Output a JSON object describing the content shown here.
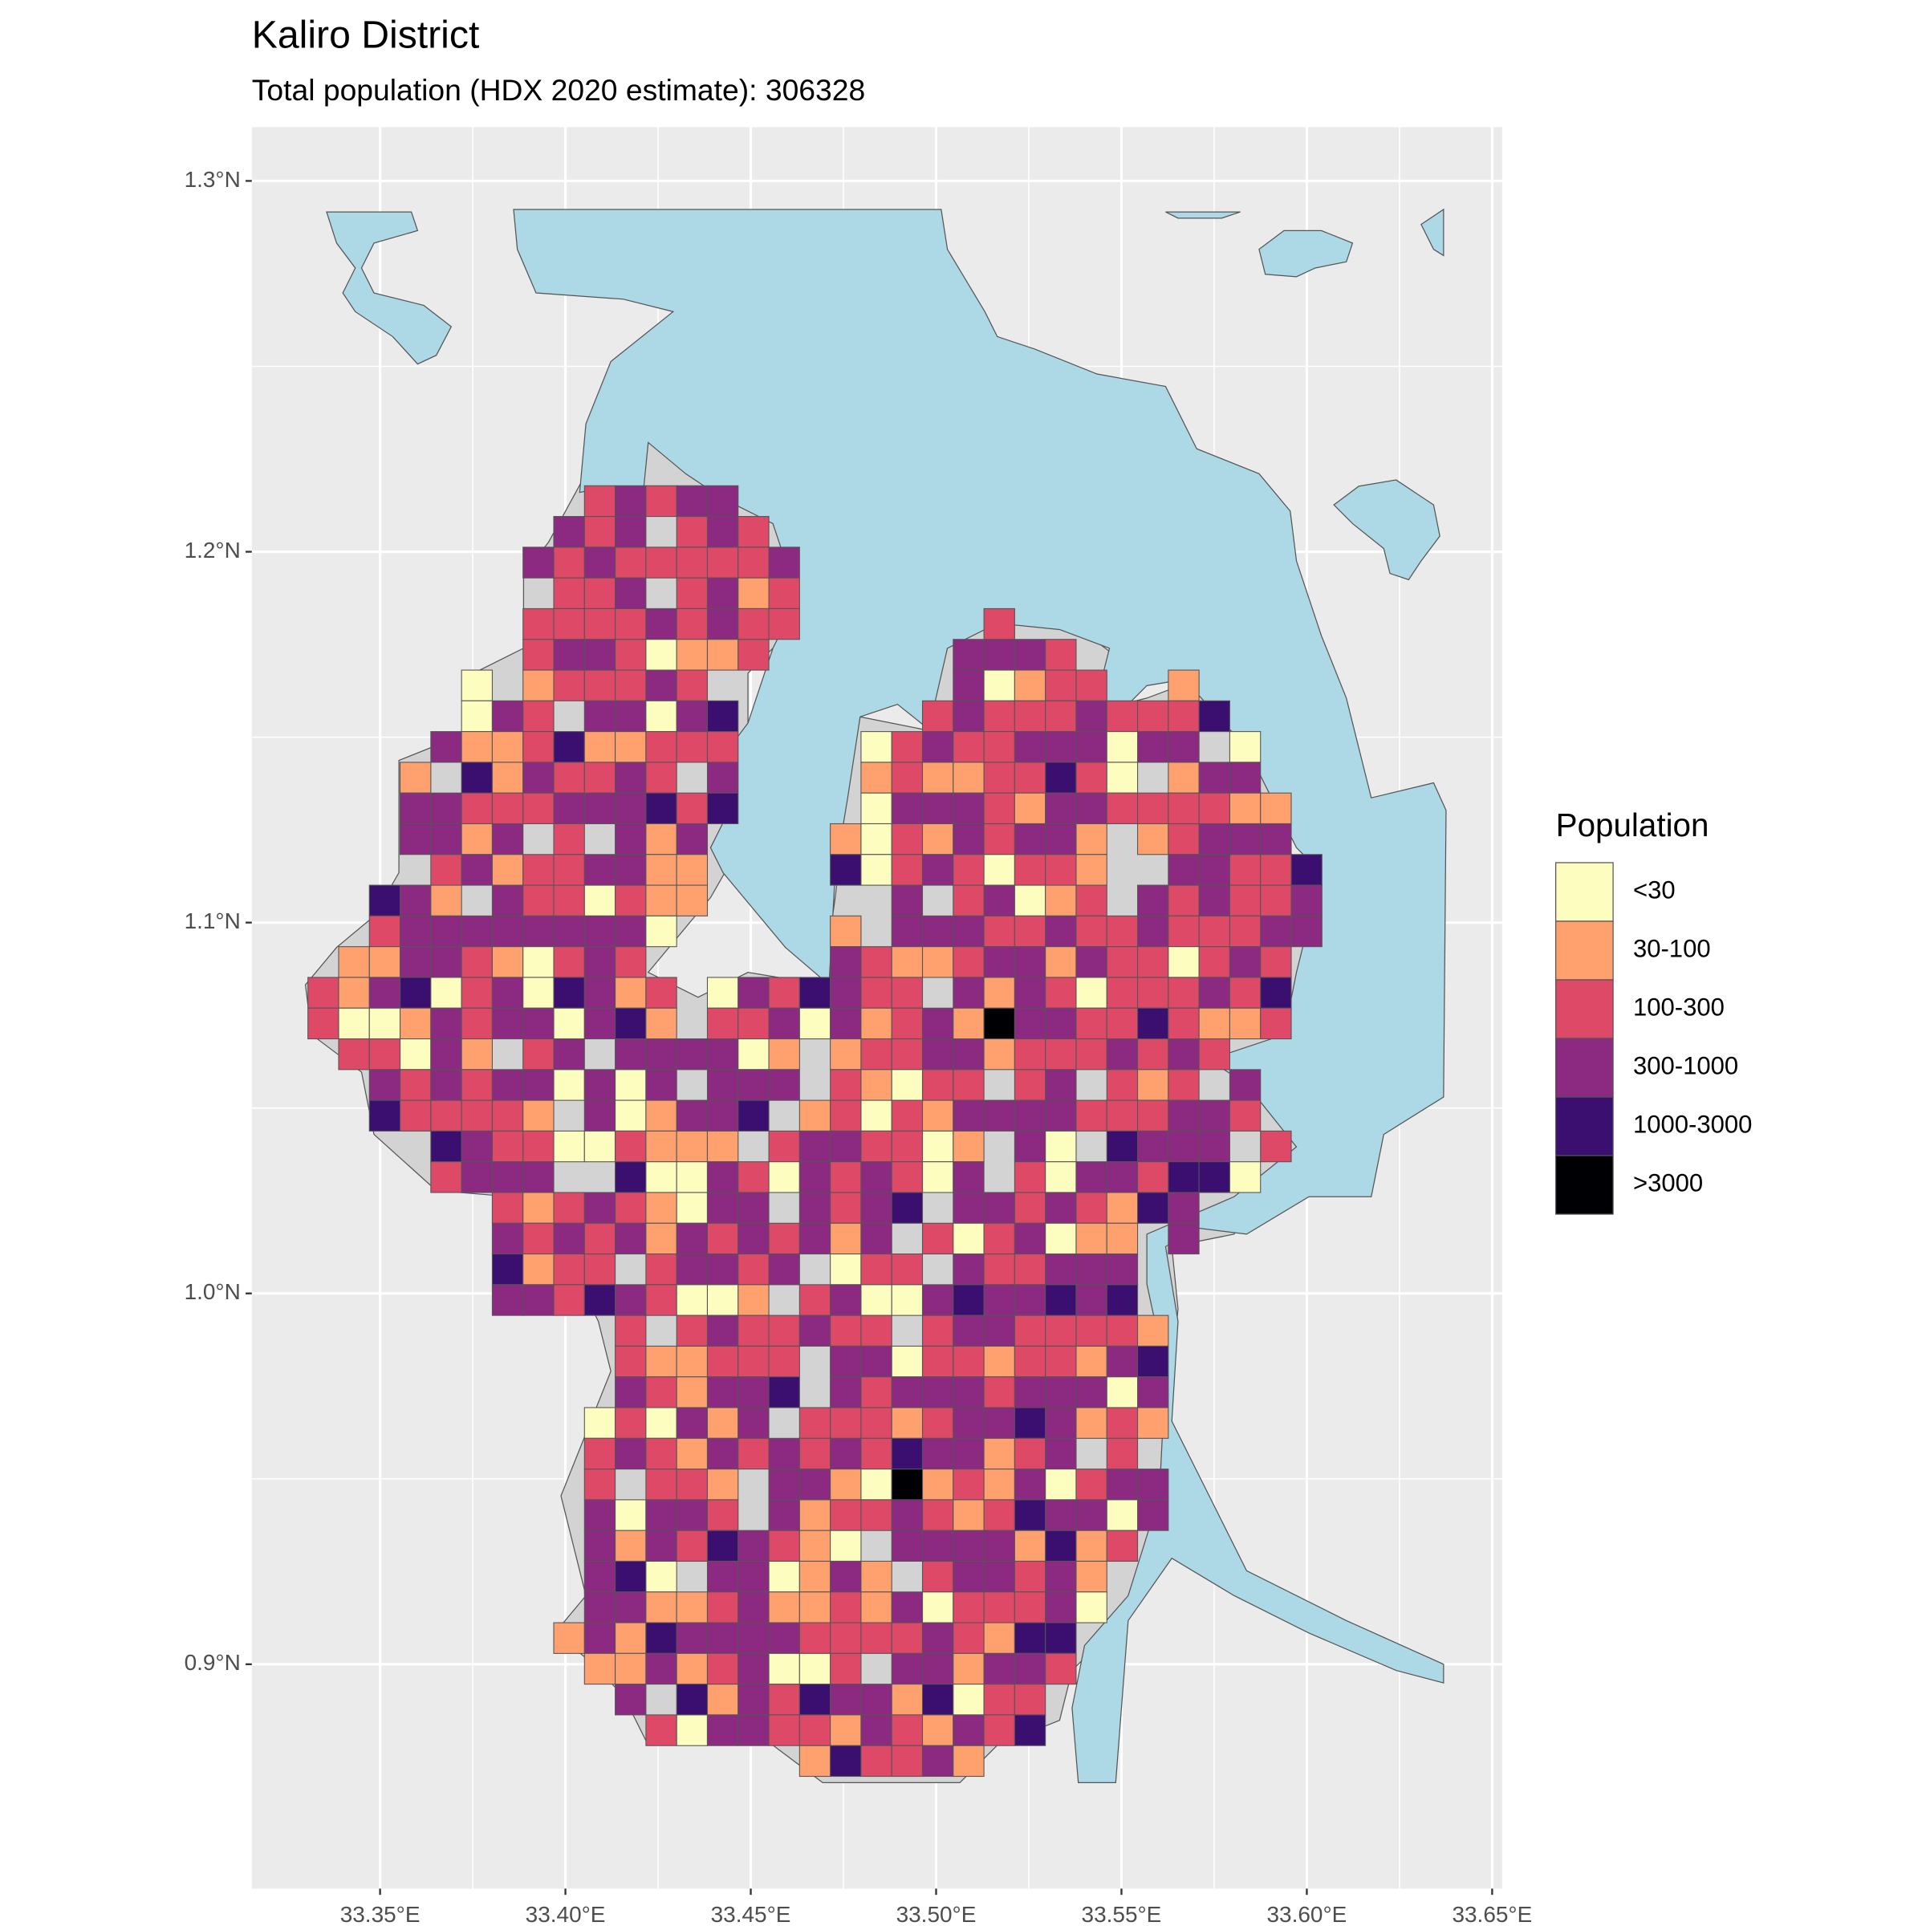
{
  "chart_data": {
    "type": "map",
    "title": "Kaliro District",
    "subtitle": "Total population (HDX 2020 estimate): 306328",
    "xlim": [
      33.3154,
      33.6527
    ],
    "ylim": [
      0.8395,
      1.3145
    ],
    "xticks": [
      {
        "value": 33.35,
        "label": "33.35°E"
      },
      {
        "value": 33.4,
        "label": "33.40°E"
      },
      {
        "value": 33.45,
        "label": "33.45°E"
      },
      {
        "value": 33.5,
        "label": "33.50°E"
      },
      {
        "value": 33.55,
        "label": "33.55°E"
      },
      {
        "value": 33.6,
        "label": "33.60°E"
      },
      {
        "value": 33.65,
        "label": "33.65°E"
      }
    ],
    "yticks": [
      {
        "value": 0.9,
        "label": "0.9°N"
      },
      {
        "value": 1.0,
        "label": "1.0°N"
      },
      {
        "value": 1.1,
        "label": "1.1°N"
      },
      {
        "value": 1.2,
        "label": "1.2°N"
      },
      {
        "value": 1.3,
        "label": "1.3°N"
      }
    ],
    "grid": true,
    "legend": {
      "title": "Population",
      "position": "right",
      "items": [
        {
          "label": "<30",
          "color": "#fcfdbf"
        },
        {
          "label": "30-100",
          "color": "#fea16e"
        },
        {
          "label": "100-300",
          "color": "#de4968"
        },
        {
          "label": "300-1000",
          "color": "#8c2981"
        },
        {
          "label": "1000-3000",
          "color": "#3b0f70"
        },
        {
          "label": ">3000",
          "color": "#000004"
        }
      ]
    }
  }
}
